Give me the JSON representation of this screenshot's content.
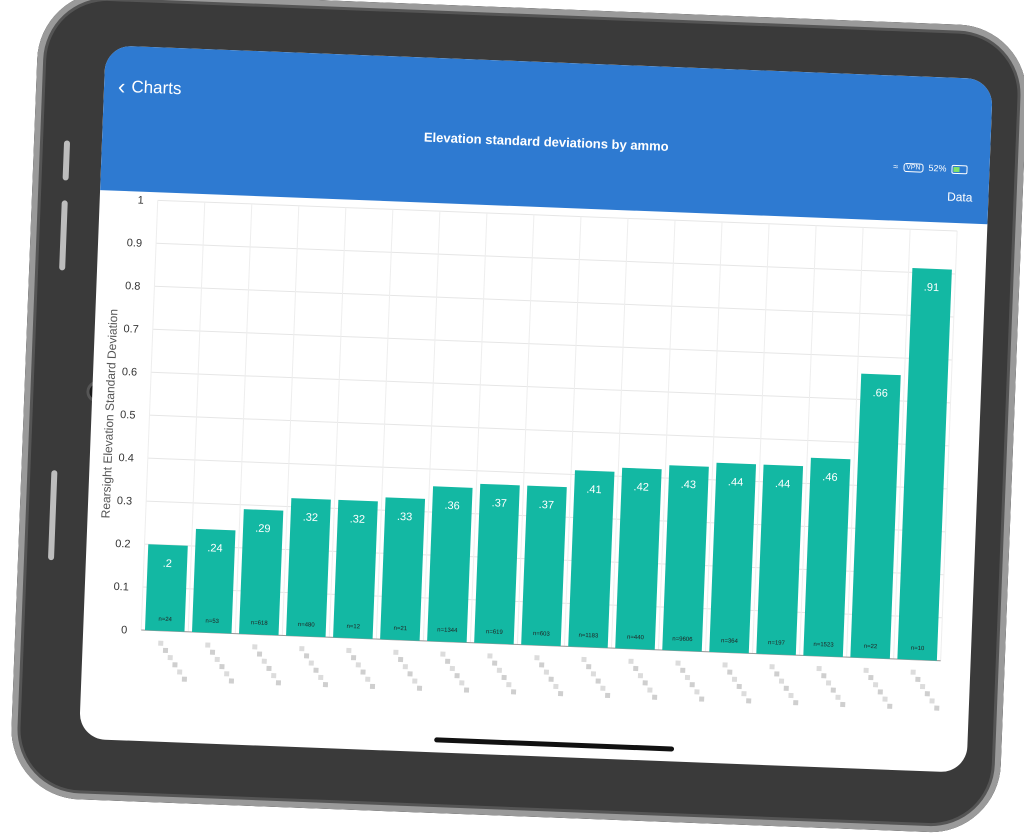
{
  "navbar": {
    "back_label": "Charts",
    "title": "Elevation standard deviations by ammo",
    "status_wifi": "wifi-icon",
    "status_vpn": "VPN",
    "status_battery": "52%",
    "data_label": "Data",
    "color": "#2e7ad1"
  },
  "chart_data": {
    "type": "bar",
    "title": "Elevation standard deviations by ammo",
    "ylabel": "Rearsight Elevation Standard Deviation",
    "xlabel": "",
    "ylim": [
      0,
      1
    ],
    "yticks": [
      "0",
      "0.1",
      "0.2",
      "0.3",
      "0.4",
      "0.5",
      "0.6",
      "0.7",
      "0.8",
      "0.9",
      "1"
    ],
    "bar_color": "#13b8a3",
    "value_labels": [
      ".2",
      ".24",
      ".29",
      ".32",
      ".32",
      ".33",
      ".36",
      ".37",
      ".37",
      ".41",
      ".42",
      ".43",
      ".44",
      ".44",
      ".46",
      ".66",
      ".91"
    ],
    "values": [
      0.2,
      0.24,
      0.29,
      0.32,
      0.32,
      0.33,
      0.36,
      0.37,
      0.37,
      0.41,
      0.42,
      0.43,
      0.44,
      0.44,
      0.46,
      0.66,
      0.91
    ],
    "counts": [
      "n=24",
      "n=53",
      "n=618",
      "n=480",
      "n=12",
      "n=21",
      "n=1344",
      "n=619",
      "n=603",
      "n=1183",
      "n=440",
      "n=9606",
      "n=364",
      "n=197",
      "n=1523",
      "n=22",
      "n=10"
    ],
    "grid": true
  }
}
